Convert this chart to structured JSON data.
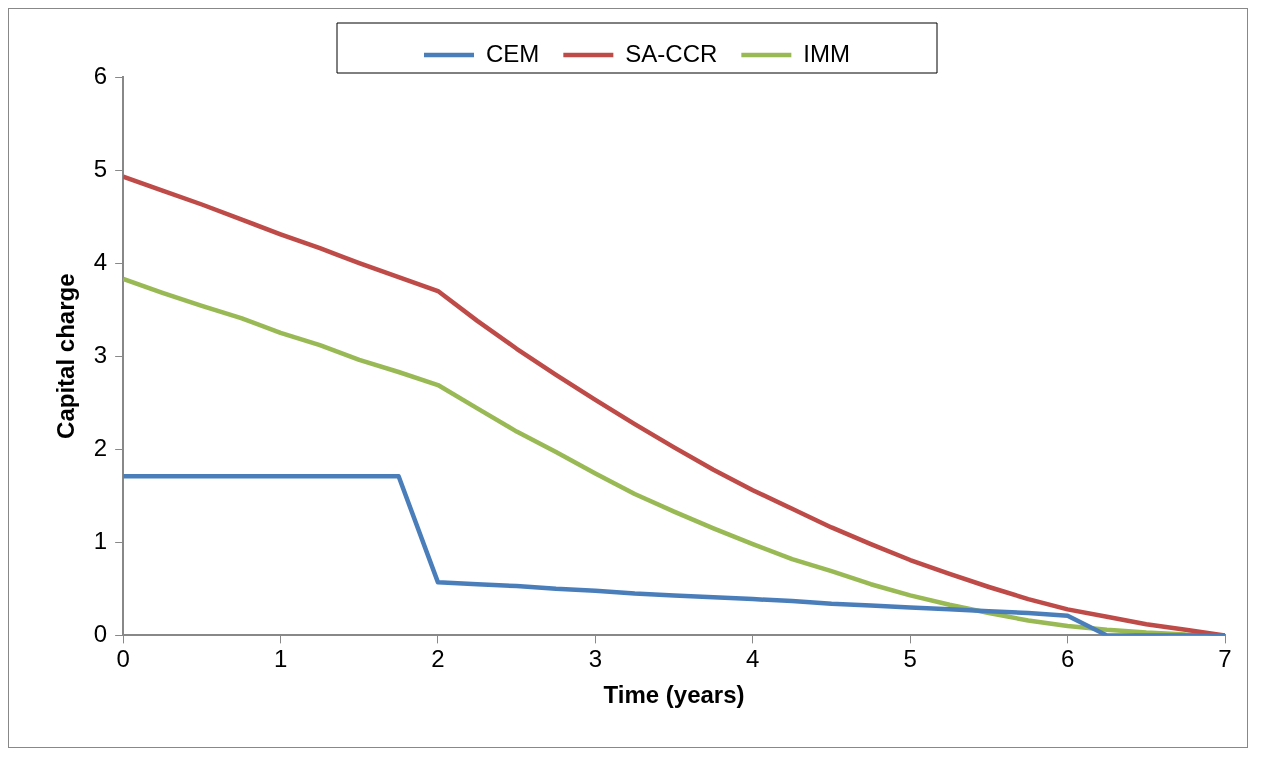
{
  "chart_data": {
    "type": "line",
    "xlabel": "Time (years)",
    "ylabel": "Capital charge",
    "x": [
      0,
      0.25,
      0.5,
      0.75,
      1,
      1.25,
      1.5,
      1.75,
      2,
      2.25,
      2.5,
      2.75,
      3,
      3.25,
      3.5,
      3.75,
      4,
      4.25,
      4.5,
      4.75,
      5,
      5.25,
      5.5,
      5.75,
      6,
      6.25,
      6.5,
      6.75,
      7
    ],
    "series": [
      {
        "name": "CEM",
        "color": "#4a7ebb",
        "values": [
          1.71,
          1.71,
          1.71,
          1.71,
          1.71,
          1.71,
          1.71,
          1.71,
          0.57,
          0.55,
          0.53,
          0.5,
          0.48,
          0.45,
          0.43,
          0.41,
          0.39,
          0.37,
          0.34,
          0.32,
          0.3,
          0.28,
          0.26,
          0.24,
          0.21,
          0,
          0,
          0,
          0
        ]
      },
      {
        "name": "SA-CCR",
        "color": "#be4b48",
        "values": [
          4.93,
          4.78,
          4.63,
          4.47,
          4.31,
          4.16,
          4.0,
          3.85,
          3.7,
          3.38,
          3.08,
          2.8,
          2.53,
          2.27,
          2.02,
          1.78,
          1.56,
          1.36,
          1.16,
          0.98,
          0.81,
          0.66,
          0.52,
          0.39,
          0.28,
          0.2,
          0.12,
          0.06,
          0
        ]
      },
      {
        "name": "IMM",
        "color": "#98b954",
        "values": [
          3.83,
          3.68,
          3.54,
          3.41,
          3.25,
          3.12,
          2.96,
          2.83,
          2.69,
          2.44,
          2.19,
          1.97,
          1.74,
          1.52,
          1.33,
          1.15,
          0.98,
          0.82,
          0.69,
          0.55,
          0.43,
          0.33,
          0.24,
          0.16,
          0.1,
          0.06,
          0.03,
          0.01,
          0
        ]
      }
    ],
    "xlim": [
      0,
      7
    ],
    "xticks": [
      0,
      1,
      2,
      3,
      4,
      5,
      6,
      7
    ],
    "ylim": [
      0,
      6
    ],
    "yticks": [
      0,
      1,
      2,
      3,
      4,
      5,
      6
    ],
    "grid": false,
    "legend": "top",
    "marker": "none",
    "line_style": "solid"
  }
}
